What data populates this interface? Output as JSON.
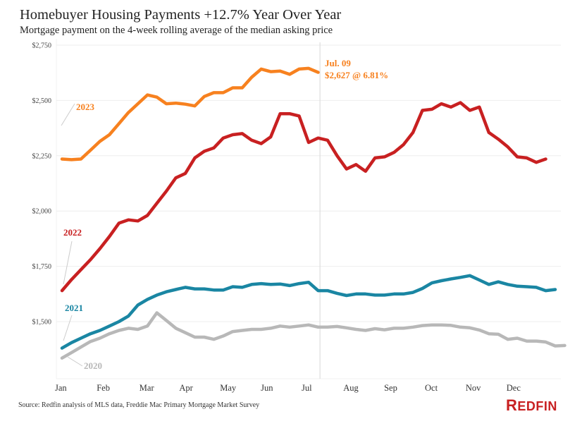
{
  "header": {
    "title": "Homebuyer Housing Payments +12.7% Year Over Year",
    "subtitle": "Mortgage payment on the 4-week rolling average of the median asking price"
  },
  "footer": {
    "source": "Source: Redfin analysis of MLS data, Freddie Mac Primary Mortgage Market Survey",
    "logo_first": "R",
    "logo_rest": "EDFIN"
  },
  "colors": {
    "2023": "#f7811f",
    "2022": "#c82021",
    "2021": "#1a86a3",
    "2020": "#b8b8b8",
    "grid": "#eeeeee",
    "refline": "#dddddd"
  },
  "chart_data": {
    "type": "line",
    "title": "Homebuyer Housing Payments +12.7% Year Over Year",
    "subtitle": "Mortgage payment on the 4-week rolling average of the median asking price",
    "xlabel": "",
    "ylabel": "",
    "ylim": [
      1300,
      2750
    ],
    "yticks": [
      1500,
      1750,
      2000,
      2250,
      2500,
      2750
    ],
    "ytick_labels": [
      "$1,500",
      "$1,750",
      "$2,000",
      "$2,250",
      "$2,500",
      "$2,750"
    ],
    "xlim_weeks": [
      0,
      52
    ],
    "xticks_week": [
      0,
      4.4,
      8.9,
      13.1,
      17.4,
      21.7,
      26,
      30.4,
      34.7,
      39,
      43.3,
      47.6
    ],
    "xtick_labels": [
      "Jan",
      "Feb",
      "Mar",
      "Apr",
      "May",
      "Jun",
      "Jul",
      "Aug",
      "Sep",
      "Oct",
      "Nov",
      "Dec"
    ],
    "grid": "horizontal",
    "reference_line": {
      "week": 27.2,
      "label": "Jul. 09"
    },
    "annotation": {
      "line1": "Jul. 09",
      "line2": "$2,627 @ 6.81%",
      "series": "2023"
    },
    "series": [
      {
        "name": "2020",
        "label": "2020",
        "values": [
          1335,
          1360,
          1385,
          1410,
          1425,
          1445,
          1460,
          1470,
          1465,
          1480,
          1540,
          1505,
          1470,
          1450,
          1430,
          1430,
          1420,
          1435,
          1455,
          1460,
          1465,
          1465,
          1470,
          1480,
          1475,
          1480,
          1485,
          1475,
          1475,
          1478,
          1472,
          1465,
          1460,
          1468,
          1463,
          1470,
          1470,
          1475,
          1482,
          1485,
          1485,
          1483,
          1475,
          1472,
          1462,
          1445,
          1443,
          1420,
          1425,
          1412,
          1412,
          1408,
          1390,
          1392
        ]
      },
      {
        "name": "2021",
        "label": "2021",
        "values": [
          1380,
          1405,
          1425,
          1445,
          1460,
          1480,
          1500,
          1525,
          1575,
          1600,
          1620,
          1635,
          1645,
          1655,
          1648,
          1648,
          1643,
          1643,
          1658,
          1655,
          1668,
          1672,
          1668,
          1670,
          1663,
          1672,
          1678,
          1640,
          1640,
          1628,
          1618,
          1625,
          1625,
          1620,
          1620,
          1625,
          1625,
          1632,
          1650,
          1675,
          1685,
          1693,
          1700,
          1708,
          1688,
          1668,
          1680,
          1668,
          1660,
          1658,
          1655,
          1640,
          1645
        ]
      },
      {
        "name": "2022",
        "label": "2022",
        "values": [
          1640,
          1690,
          1735,
          1780,
          1830,
          1885,
          1945,
          1960,
          1955,
          1980,
          2035,
          2090,
          2150,
          2170,
          2240,
          2270,
          2285,
          2330,
          2345,
          2350,
          2320,
          2305,
          2335,
          2440,
          2440,
          2430,
          2310,
          2330,
          2320,
          2250,
          2190,
          2210,
          2180,
          2240,
          2245,
          2265,
          2300,
          2355,
          2455,
          2460,
          2485,
          2470,
          2490,
          2455,
          2470,
          2355,
          2325,
          2290,
          2245,
          2240,
          2220,
          2235
        ]
      },
      {
        "name": "2023",
        "label": "2023",
        "values": [
          2235,
          2232,
          2235,
          2275,
          2315,
          2345,
          2395,
          2445,
          2485,
          2525,
          2515,
          2485,
          2488,
          2483,
          2475,
          2518,
          2535,
          2535,
          2557,
          2557,
          2605,
          2642,
          2630,
          2633,
          2618,
          2642,
          2645,
          2627
        ]
      }
    ]
  }
}
